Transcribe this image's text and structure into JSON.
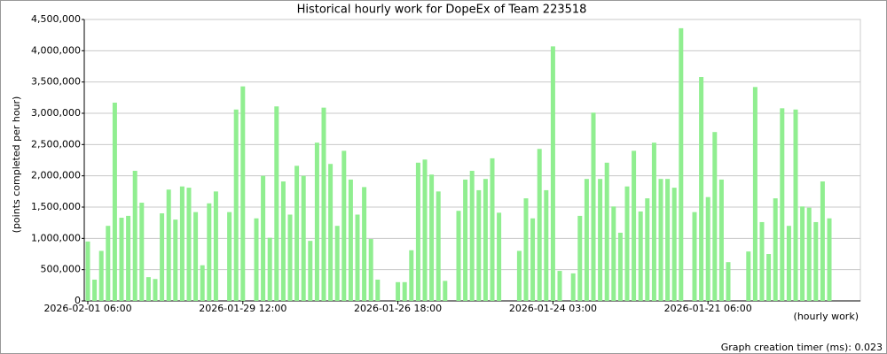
{
  "chart_data": {
    "type": "bar",
    "title": "Historical hourly work for DopeEx of Team 223518",
    "y_label": "(points completed per hour)",
    "x_label": "(hourly work)",
    "footer": "Graph creation timer (ms): 0.023",
    "color": "#90ee90",
    "grid": true,
    "categories": [
      "2026-02-01 06:00",
      null,
      null,
      null,
      null,
      null,
      null,
      null,
      null,
      null,
      null,
      null,
      null,
      null,
      null,
      null,
      null,
      null,
      null,
      null,
      null,
      null,
      null,
      "2026-01-29 12:00",
      null,
      null,
      null,
      null,
      null,
      null,
      null,
      null,
      null,
      null,
      null,
      null,
      null,
      null,
      null,
      null,
      null,
      null,
      null,
      null,
      null,
      null,
      "2026-01-26 18:00",
      null,
      null,
      null,
      null,
      null,
      null,
      null,
      null,
      null,
      null,
      null,
      null,
      null,
      null,
      null,
      null,
      null,
      null,
      null,
      null,
      null,
      null,
      "2026-01-24 03:00",
      null,
      null,
      null,
      null,
      null,
      null,
      null,
      null,
      null,
      null,
      null,
      null,
      null,
      null,
      null,
      null,
      null,
      null,
      null,
      null,
      null,
      null,
      "2026-01-21 06:00",
      null,
      null,
      null,
      null,
      null,
      null,
      null,
      null,
      null,
      null,
      null,
      null,
      null,
      null,
      null,
      null,
      null,
      null
    ],
    "values": [
      950000,
      340000,
      800000,
      1200000,
      3170000,
      1330000,
      1360000,
      2080000,
      1570000,
      380000,
      350000,
      1400000,
      1780000,
      1300000,
      1830000,
      1810000,
      1420000,
      570000,
      1560000,
      1750000,
      0,
      1420000,
      3060000,
      3430000,
      0,
      1320000,
      2000000,
      1010000,
      3110000,
      1910000,
      1380000,
      2160000,
      2000000,
      960000,
      2530000,
      3090000,
      2190000,
      1200000,
      2400000,
      1940000,
      1380000,
      1820000,
      990000,
      340000,
      0,
      0,
      300000,
      300000,
      810000,
      2210000,
      2260000,
      2020000,
      1750000,
      320000,
      0,
      1440000,
      1940000,
      2080000,
      1770000,
      1950000,
      2280000,
      1410000,
      0,
      0,
      800000,
      1640000,
      1320000,
      2430000,
      1770000,
      4070000,
      480000,
      0,
      440000,
      1360000,
      1950000,
      3010000,
      1950000,
      2210000,
      1510000,
      1090000,
      1830000,
      2400000,
      1430000,
      1640000,
      2530000,
      1950000,
      1950000,
      1810000,
      4360000,
      0,
      1420000,
      3580000,
      1660000,
      2700000,
      1940000,
      620000,
      0,
      0,
      790000,
      3420000,
      1260000,
      750000,
      1640000,
      3080000,
      1200000,
      3060000,
      1510000,
      1490000,
      1260000,
      1910000,
      1320000
    ],
    "ylim": [
      0,
      4500000
    ],
    "yticks": [
      0,
      {
        "value": 500000,
        "label": "500,000"
      },
      {
        "value": 1000000,
        "label": "1,000,000"
      },
      {
        "value": 1500000,
        "label": "1,500,000"
      },
      {
        "value": 2000000,
        "label": "2,000,000"
      },
      {
        "value": 2500000,
        "label": "2,500,000"
      },
      {
        "value": 3000000,
        "label": "3,000,000"
      },
      {
        "value": 3500000,
        "label": "3,500,000"
      },
      {
        "value": 4000000,
        "label": "4,000,000"
      },
      {
        "value": 4500000,
        "label": "4,500,000"
      }
    ]
  }
}
